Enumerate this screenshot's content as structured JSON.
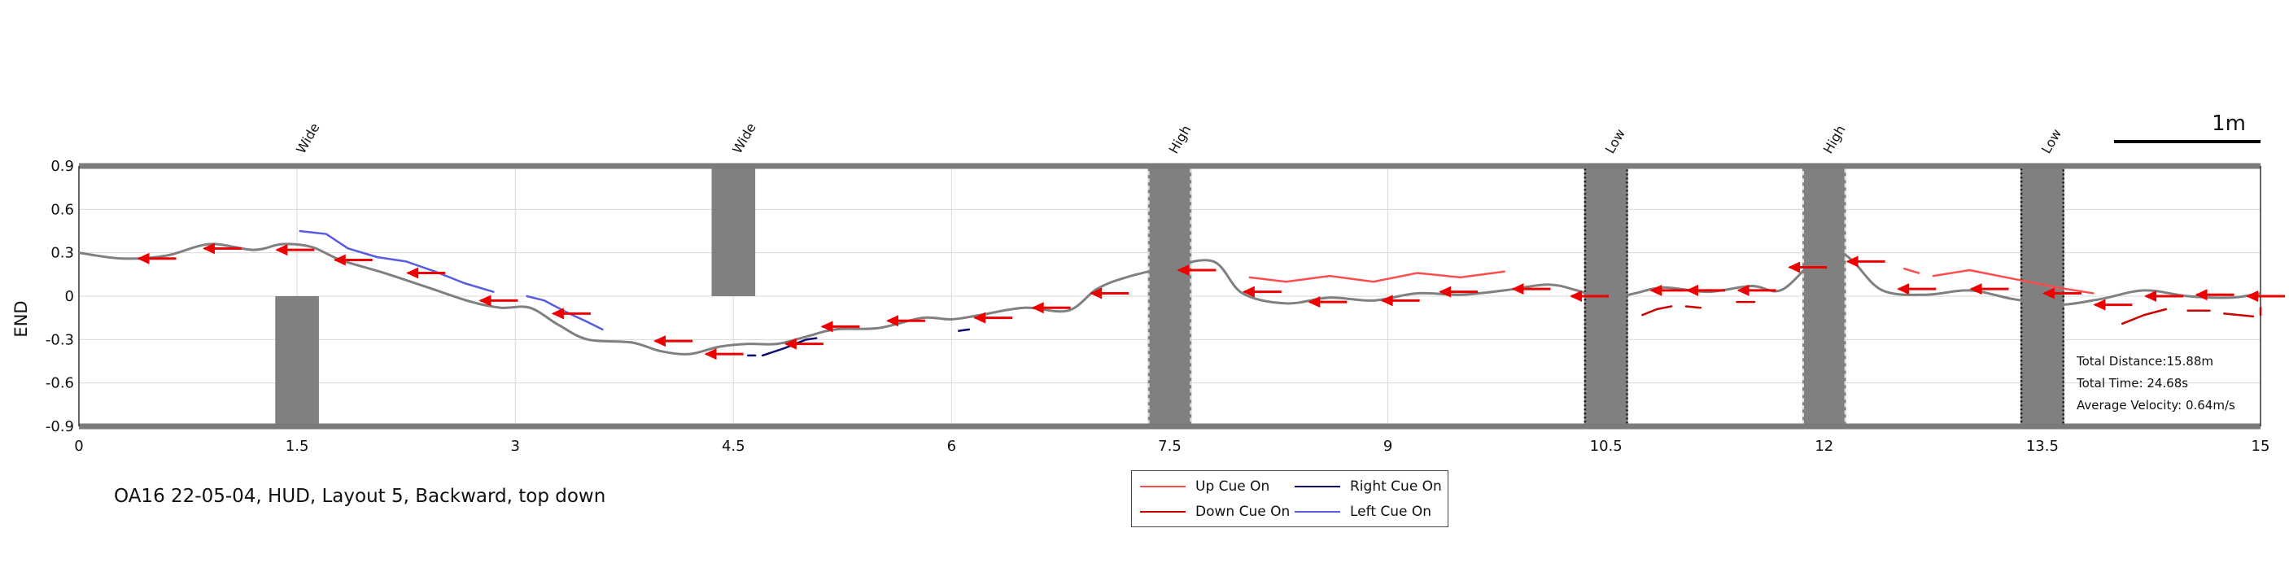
{
  "colors": {
    "trajectory": "#808080",
    "up_cue": "#ff4d4d",
    "down_cue": "#cc0000",
    "right_cue": "#0a0a70",
    "left_cue": "#5a5ae0",
    "arrow": "#ee0000",
    "obstacle": "#808080",
    "frame": "#7a7a7a",
    "grid": "#d8d8d8"
  },
  "chart_data": {
    "type": "line",
    "title": "OA16 22-05-04, HUD, Layout 5, Backward, top down",
    "xlabel": "",
    "ylabel": "END",
    "xlim": [
      0,
      15
    ],
    "ylim": [
      -0.9,
      0.9
    ],
    "xticks": [
      "0",
      "1.5",
      "3",
      "4.5",
      "6",
      "7.5",
      "9",
      "10.5",
      "12",
      "13.5",
      "15"
    ],
    "yticks": [
      "0.9",
      "0.6",
      "0.3",
      "0",
      "-0.3",
      "-0.6",
      "-0.9"
    ],
    "grid": true,
    "legend_position": "bottom-center",
    "scale_bar_label": "1m",
    "scale_bar_length": 1,
    "obstacles": [
      {
        "label": "Wide",
        "x_center": 1.5,
        "x_start": 1.35,
        "x_end": 1.65,
        "y_start": -0.9,
        "y_end": 0,
        "outline": "none"
      },
      {
        "label": "Wide",
        "x_center": 4.5,
        "x_start": 4.35,
        "x_end": 4.65,
        "y_start": 0,
        "y_end": 0.9,
        "outline": "none"
      },
      {
        "label": "High",
        "x_center": 7.5,
        "x_start": 7.35,
        "x_end": 7.65,
        "y_start": -0.9,
        "y_end": 0.9,
        "outline": "light-dashed"
      },
      {
        "label": "Low",
        "x_center": 10.5,
        "x_start": 10.35,
        "x_end": 10.65,
        "y_start": -0.9,
        "y_end": 0.9,
        "outline": "dark-dotted"
      },
      {
        "label": "High",
        "x_center": 12.0,
        "x_start": 11.85,
        "x_end": 12.15,
        "y_start": -0.9,
        "y_end": 0.9,
        "outline": "light-dashed"
      },
      {
        "label": "Low",
        "x_center": 13.5,
        "x_start": 13.35,
        "x_end": 13.65,
        "y_start": -0.9,
        "y_end": 0.9,
        "outline": "dark-dotted"
      }
    ],
    "trajectory": {
      "x": [
        0.0,
        0.3,
        0.6,
        0.9,
        1.2,
        1.4,
        1.6,
        1.8,
        2.1,
        2.4,
        2.7,
        2.9,
        3.1,
        3.3,
        3.5,
        3.8,
        4.0,
        4.2,
        4.4,
        4.6,
        4.8,
        5.0,
        5.2,
        5.5,
        5.8,
        6.0,
        6.2,
        6.5,
        6.8,
        7.0,
        7.2,
        7.5,
        7.8,
        8.0,
        8.3,
        8.6,
        8.9,
        9.2,
        9.5,
        9.8,
        10.1,
        10.3,
        10.5,
        10.7,
        10.9,
        11.2,
        11.5,
        11.7,
        11.9,
        12.0,
        12.1,
        12.2,
        12.4,
        12.7,
        13.0,
        13.3,
        13.6,
        13.9,
        14.2,
        14.5,
        14.8,
        15.0
      ],
      "y": [
        0.3,
        0.26,
        0.28,
        0.36,
        0.32,
        0.36,
        0.34,
        0.25,
        0.16,
        0.06,
        -0.04,
        -0.08,
        -0.08,
        -0.2,
        -0.3,
        -0.32,
        -0.38,
        -0.4,
        -0.35,
        -0.33,
        -0.33,
        -0.28,
        -0.23,
        -0.22,
        -0.15,
        -0.16,
        -0.13,
        -0.08,
        -0.1,
        0.05,
        0.13,
        0.2,
        0.24,
        0.02,
        -0.05,
        -0.01,
        -0.03,
        0.02,
        0.01,
        0.04,
        0.08,
        0.04,
        -0.02,
        0.02,
        0.06,
        0.03,
        0.07,
        0.04,
        0.22,
        0.3,
        0.31,
        0.24,
        0.04,
        0.01,
        0.04,
        -0.02,
        -0.06,
        -0.02,
        0.04,
        0.0,
        -0.01,
        0.02
      ]
    },
    "series": [
      {
        "name": "Up Cue On",
        "segments": [
          {
            "x": [
              8.05,
              8.3,
              8.6,
              8.9,
              9.2,
              9.5,
              9.8
            ],
            "y": [
              0.13,
              0.1,
              0.14,
              0.1,
              0.16,
              0.13,
              0.17
            ]
          },
          {
            "x": [
              12.55,
              12.65
            ],
            "y": [
              0.19,
              0.16
            ]
          },
          {
            "x": [
              12.75,
              13.0,
              13.3,
              13.6,
              13.85
            ],
            "y": [
              0.14,
              0.18,
              0.12,
              0.06,
              0.02
            ]
          }
        ]
      },
      {
        "name": "Down Cue On",
        "segments": [
          {
            "x": [
              10.75,
              10.85,
              10.95
            ],
            "y": [
              -0.13,
              -0.09,
              -0.07
            ]
          },
          {
            "x": [
              11.05,
              11.15
            ],
            "y": [
              -0.07,
              -0.08
            ]
          },
          {
            "x": [
              11.4,
              11.52
            ],
            "y": [
              -0.04,
              -0.04
            ]
          },
          {
            "x": [
              14.05,
              14.2,
              14.35
            ],
            "y": [
              -0.19,
              -0.13,
              -0.09
            ]
          },
          {
            "x": [
              14.5,
              14.65
            ],
            "y": [
              -0.1,
              -0.1
            ]
          },
          {
            "x": [
              14.75,
              14.95
            ],
            "y": [
              -0.12,
              -0.14
            ]
          },
          {
            "x": [
              15.0,
              15.15,
              15.28
            ],
            "y": [
              -0.12,
              -0.08,
              -0.13
            ]
          }
        ]
      },
      {
        "name": "Right Cue On",
        "segments": [
          {
            "x": [
              4.6,
              4.65
            ],
            "y": [
              -0.41,
              -0.41
            ]
          },
          {
            "x": [
              4.7,
              4.85,
              5.0,
              5.07
            ],
            "y": [
              -0.41,
              -0.36,
              -0.3,
              -0.29
            ]
          },
          {
            "x": [
              6.05,
              6.12
            ],
            "y": [
              -0.24,
              -0.23
            ]
          }
        ]
      },
      {
        "name": "Left Cue On",
        "segments": [
          {
            "x": [
              1.52,
              1.7,
              1.85,
              2.05,
              2.25,
              2.45,
              2.65,
              2.85
            ],
            "y": [
              0.45,
              0.43,
              0.33,
              0.27,
              0.24,
              0.17,
              0.09,
              0.03
            ]
          },
          {
            "x": [
              3.08,
              3.2,
              3.35,
              3.5,
              3.6
            ],
            "y": [
              0.0,
              -0.03,
              -0.11,
              -0.18,
              -0.23
            ]
          }
        ]
      }
    ],
    "direction_arrows": [
      {
        "x": 0.4,
        "y": 0.26
      },
      {
        "x": 0.85,
        "y": 0.33
      },
      {
        "x": 1.35,
        "y": 0.32
      },
      {
        "x": 1.75,
        "y": 0.25
      },
      {
        "x": 2.25,
        "y": 0.16
      },
      {
        "x": 2.75,
        "y": -0.03
      },
      {
        "x": 3.25,
        "y": -0.12
      },
      {
        "x": 3.95,
        "y": -0.31
      },
      {
        "x": 4.3,
        "y": -0.4
      },
      {
        "x": 4.85,
        "y": -0.33
      },
      {
        "x": 5.1,
        "y": -0.21
      },
      {
        "x": 5.55,
        "y": -0.17
      },
      {
        "x": 6.15,
        "y": -0.15
      },
      {
        "x": 6.55,
        "y": -0.08
      },
      {
        "x": 6.95,
        "y": 0.02
      },
      {
        "x": 7.55,
        "y": 0.18
      },
      {
        "x": 8.0,
        "y": 0.03
      },
      {
        "x": 8.45,
        "y": -0.04
      },
      {
        "x": 8.95,
        "y": -0.03
      },
      {
        "x": 9.35,
        "y": 0.03
      },
      {
        "x": 9.85,
        "y": 0.05
      },
      {
        "x": 10.25,
        "y": 0.0
      },
      {
        "x": 10.8,
        "y": 0.04
      },
      {
        "x": 11.05,
        "y": 0.04
      },
      {
        "x": 11.4,
        "y": 0.04
      },
      {
        "x": 11.75,
        "y": 0.2
      },
      {
        "x": 12.15,
        "y": 0.24
      },
      {
        "x": 12.5,
        "y": 0.05
      },
      {
        "x": 13.0,
        "y": 0.05
      },
      {
        "x": 13.5,
        "y": 0.02
      },
      {
        "x": 13.85,
        "y": -0.06
      },
      {
        "x": 14.2,
        "y": 0.0
      },
      {
        "x": 14.55,
        "y": 0.01
      },
      {
        "x": 14.9,
        "y": 0.0
      }
    ],
    "summary": {
      "total_distance": "Total Distance:15.88m",
      "total_time": "Total Time: 24.68s",
      "average_velocity": "Average Velocity: 0.64m/s"
    }
  },
  "legend": {
    "up_cue": "Up Cue On",
    "down_cue": "Down Cue On",
    "right_cue": "Right Cue On",
    "left_cue": "Left Cue On"
  },
  "caption": "OA16 22-05-04, HUD, Layout 5, Backward, top down"
}
